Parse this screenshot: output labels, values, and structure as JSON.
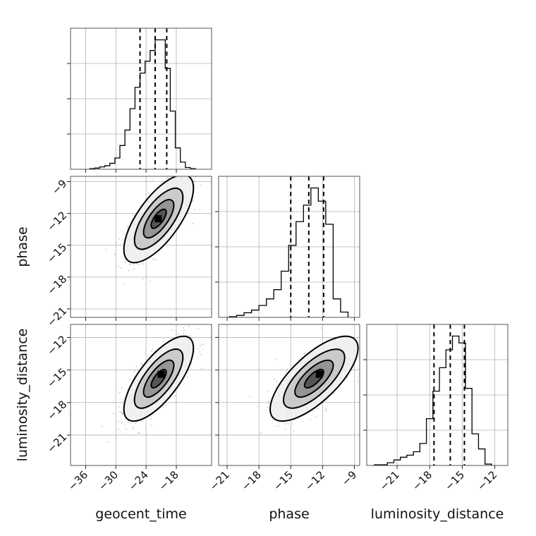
{
  "chart_data": {
    "type": "corner",
    "parameters": [
      "geocent_time",
      "phase",
      "luminosity_distance"
    ],
    "axis_ranges": {
      "geocent_time": [
        -39,
        -11
      ],
      "phase": [
        -21.8,
        -8.5
      ],
      "luminosity_distance": [
        -23.8,
        -10.8
      ]
    },
    "ticks": {
      "geocent_time": [
        -36,
        -30,
        -24,
        -18
      ],
      "phase": [
        -21,
        -18,
        -15,
        -12,
        -9
      ],
      "luminosity_distance": [
        -21,
        -18,
        -15,
        -12
      ]
    },
    "tick_labels": {
      "geocent_time": [
        "−36",
        "−30",
        "−24",
        "−18"
      ],
      "phase": [
        "−21",
        "−18",
        "−15",
        "−12",
        "−9"
      ],
      "luminosity_distance": [
        "−21",
        "−18",
        "−15",
        "−12"
      ]
    },
    "quantiles": {
      "geocent_time": [
        -25.2,
        -22.2,
        -19.9
      ],
      "phase": [
        -15.0,
        -13.3,
        -11.9
      ],
      "luminosity_distance": [
        -17.6,
        -16.1,
        -14.8
      ]
    },
    "histograms": {
      "geocent_time": {
        "edges": [
          -35.2,
          -34.2,
          -33.2,
          -32.2,
          -31.2,
          -30.2,
          -29.2,
          -28.2,
          -27.2,
          -26.2,
          -25.2,
          -24.2,
          -23.2,
          -22.2,
          -21.2,
          -20.2,
          -19.2,
          -18.2,
          -17.2,
          -16.2,
          -15.2,
          -14.2
        ],
        "counts": [
          1,
          2,
          4,
          6,
          10,
          19,
          40,
          66,
          102,
          138,
          162,
          182,
          200,
          218,
          218,
          170,
          98,
          36,
          12,
          3,
          1
        ]
      },
      "phase": {
        "edges": [
          -20.8,
          -20.1,
          -19.4,
          -18.7,
          -18.0,
          -17.3,
          -16.6,
          -15.9,
          -15.2,
          -14.5,
          -13.8,
          -13.1,
          -12.4,
          -11.7,
          -11.0,
          -10.3,
          -9.6
        ],
        "counts": [
          1,
          3,
          7,
          11,
          18,
          28,
          42,
          70,
          109,
          145,
          170,
          196,
          176,
          141,
          28,
          8
        ]
      },
      "luminosity_distance": {
        "edges": [
          -23.1,
          -22.5,
          -21.9,
          -21.3,
          -20.7,
          -20.1,
          -19.5,
          -18.9,
          -18.3,
          -17.7,
          -17.1,
          -16.5,
          -15.9,
          -15.3,
          -14.7,
          -14.1,
          -13.5,
          -12.9,
          -12.3
        ],
        "counts": [
          1,
          1,
          4,
          8,
          12,
          15,
          20,
          32,
          68,
          108,
          142,
          168,
          188,
          178,
          112,
          46,
          24,
          2
        ]
      }
    },
    "pairs": [
      {
        "x": "geocent_time",
        "y": "phase",
        "center": [
          -21.5,
          -12.5
        ],
        "sigma": [
          3.0,
          1.8
        ],
        "rho": 0.7,
        "contour_levels": [
          0.5,
          1.0,
          1.6,
          2.3
        ],
        "peak": [
          -21.6,
          -12.5
        ]
      },
      {
        "x": "geocent_time",
        "y": "luminosity_distance",
        "center": [
          -21.5,
          -15.8
        ],
        "sigma": [
          3.0,
          1.7
        ],
        "rho": 0.72,
        "contour_levels": [
          0.5,
          1.0,
          1.6,
          2.3
        ],
        "peak": [
          -21.0,
          -15.4
        ]
      },
      {
        "x": "phase",
        "y": "luminosity_distance",
        "center": [
          -12.8,
          -15.8
        ],
        "sigma": [
          1.8,
          1.7
        ],
        "rho": 0.72,
        "contour_levels": [
          0.5,
          1.0,
          1.6,
          2.3
        ],
        "peak": [
          -12.3,
          -15.4
        ]
      }
    ],
    "xlabel": [
      "geocent_time",
      "phase",
      "luminosity_distance"
    ],
    "ylabel": [
      "phase",
      "luminosity_distance"
    ]
  }
}
